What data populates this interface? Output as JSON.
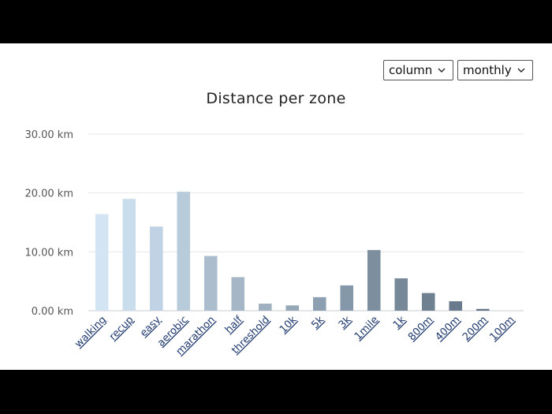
{
  "controls": {
    "chart_type": {
      "selected": "column"
    },
    "period": {
      "selected": "monthly"
    }
  },
  "chart_data": {
    "type": "bar",
    "title": "Distance per zone",
    "xlabel": "",
    "ylabel": "",
    "ylim": [
      0,
      30
    ],
    "y_ticks": [
      0,
      10,
      20,
      30
    ],
    "y_tick_labels": [
      "0.00 km",
      "10.00 km",
      "20.00 km",
      "30.00 km"
    ],
    "grid": true,
    "categories": [
      "walking",
      "recup",
      "easy",
      "aerobic",
      "marathon",
      "half",
      "threshold",
      "10k",
      "5k",
      "3k",
      "1mile",
      "1k",
      "800m",
      "400m",
      "200m",
      "100m"
    ],
    "values": [
      16.4,
      19.0,
      14.3,
      20.2,
      9.3,
      5.7,
      1.2,
      0.9,
      2.3,
      4.3,
      10.3,
      5.5,
      3.0,
      1.6,
      0.3,
      0.0
    ],
    "colors": [
      "#d3e5f3",
      "#c9dded",
      "#bfd3e4",
      "#b7cbdb",
      "#acbecd",
      "#a5b6c6",
      "#9fb0bf",
      "#96a8b8",
      "#8da0b2",
      "#8598aa",
      "#7d8f9f",
      "#778899",
      "#6f8091",
      "#687a8b",
      "#617384",
      "#5b6d7e"
    ]
  }
}
